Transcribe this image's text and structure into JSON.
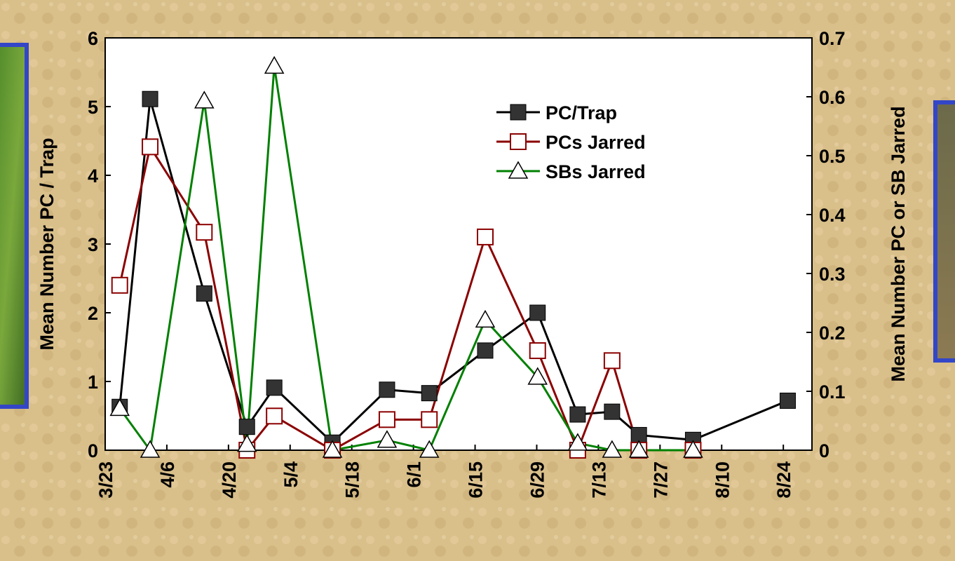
{
  "chart_data": {
    "type": "line",
    "x": [
      3.3,
      10.2,
      22.5,
      32.2,
      38.4,
      51.6,
      64,
      73.6,
      86.3,
      98.2,
      107.3,
      115.1,
      121.2,
      133.5,
      155
    ],
    "xlim": [
      0,
      160.5
    ],
    "xticks": [
      {
        "value": 0,
        "label": "3/23"
      },
      {
        "value": 14,
        "label": "4/6"
      },
      {
        "value": 28,
        "label": "4/20"
      },
      {
        "value": 42,
        "label": "5/4"
      },
      {
        "value": 56,
        "label": "5/18"
      },
      {
        "value": 70,
        "label": "6/1"
      },
      {
        "value": 84,
        "label": "6/15"
      },
      {
        "value": 98,
        "label": "6/29"
      },
      {
        "value": 112,
        "label": "7/13"
      },
      {
        "value": 126,
        "label": "7/27"
      },
      {
        "value": 140,
        "label": "8/10"
      },
      {
        "value": 154,
        "label": "8/24"
      }
    ],
    "ylabel": "Mean Number PC / Trap",
    "ylim": [
      0,
      6
    ],
    "yticks": [
      0,
      1,
      2,
      3,
      4,
      5,
      6
    ],
    "y2label": "Mean Number PC or SB Jarred",
    "y2lim": [
      0,
      0.7
    ],
    "y2ticks": [
      0,
      0.1,
      0.2,
      0.3,
      0.4,
      0.5,
      0.6,
      0.7
    ],
    "legend": "upper-center",
    "series": [
      {
        "name": "PC/Trap",
        "color": "#000000",
        "marker": "filled-square",
        "values": [
          0.63,
          5.11,
          2.28,
          0.34,
          0.91,
          0.11,
          0.88,
          0.83,
          1.45,
          2.0,
          0.52,
          0.56,
          0.22,
          0.15,
          0.72
        ]
      },
      {
        "name": "PCs Jarred",
        "color": "#8b0000",
        "marker": "open-square",
        "axis": "y2",
        "values": [
          0.28,
          0.515,
          0.37,
          0,
          0.058,
          0,
          0.052,
          0.052,
          0.362,
          0.169,
          0,
          0.152,
          0,
          0,
          null
        ]
      },
      {
        "name": "SBs Jarred",
        "color": "#008000",
        "marker": "open-triangle",
        "axis": "y2",
        "values": [
          0.071,
          0,
          0.593,
          0.01,
          0.652,
          0,
          0.017,
          0,
          0.221,
          0.124,
          0.012,
          0,
          0,
          0,
          null
        ]
      }
    ]
  }
}
